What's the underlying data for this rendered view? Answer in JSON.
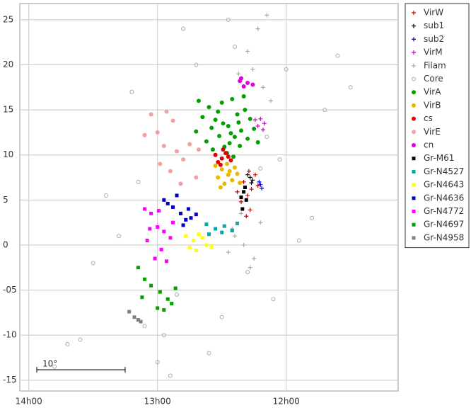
{
  "chart_data": {
    "type": "scatter",
    "annotation": "10°",
    "xlim": [
      14.07,
      11.13
    ],
    "ylim": [
      -16.2,
      26.8
    ],
    "xticks": [
      {
        "value": 14,
        "label": "14h00"
      },
      {
        "value": 13,
        "label": "13h00"
      },
      {
        "value": 12,
        "label": "12h00"
      }
    ],
    "yticks": [
      {
        "value": -15,
        "label": "-15"
      },
      {
        "value": -10,
        "label": "-10"
      },
      {
        "value": -5,
        "label": "-05"
      },
      0,
      5,
      10,
      15,
      20,
      25
    ],
    "grid": true,
    "legend": "outside-right",
    "series": [
      {
        "name": "VirW",
        "color": "#cc0000",
        "marker": "plus",
        "x": [
          12.33,
          12.3,
          12.27,
          12.35,
          12.24,
          12.28,
          12.31,
          12.38,
          12.22,
          12.29
        ],
        "y": [
          7.0,
          5.5,
          6.2,
          4.8,
          7.8,
          3.9,
          3.2,
          5.9,
          6.6,
          8.2
        ]
      },
      {
        "name": "sub1",
        "color": "#000000",
        "marker": "plus",
        "x": [
          12.28,
          12.26,
          12.3,
          12.27
        ],
        "y": [
          7.5,
          7.2,
          7.8,
          6.9
        ]
      },
      {
        "name": "sub2",
        "color": "#0000cc",
        "marker": "plus",
        "x": [
          12.2,
          12.19,
          12.21
        ],
        "y": [
          6.7,
          6.3,
          7.0
        ]
      },
      {
        "name": "VirM",
        "color": "#cc00cc",
        "marker": "plus",
        "x": [
          12.2,
          12.17,
          12.22,
          12.18,
          12.24
        ],
        "y": [
          14.0,
          13.5,
          13.2,
          12.8,
          13.9
        ]
      },
      {
        "name": "Filam",
        "color": "#aaaaaa",
        "marker": "plus",
        "x": [
          12.15,
          12.22,
          12.3,
          12.37,
          12.18,
          12.4,
          12.33,
          12.25,
          12.45,
          12.2,
          12.28,
          12.35,
          12.12,
          12.42,
          12.26
        ],
        "y": [
          25.5,
          24.0,
          21.5,
          19.0,
          17.5,
          1.0,
          0.0,
          -1.5,
          -0.8,
          2.5,
          -2.5,
          3.5,
          16.0,
          1.8,
          19.5
        ]
      },
      {
        "name": "Core",
        "color": "#aaaaaa",
        "marker": "circle-open",
        "x": [
          12.8,
          12.4,
          12.0,
          11.6,
          13.2,
          13.6,
          12.6,
          12.1,
          11.8,
          13.4,
          12.9,
          12.3,
          11.5,
          13.7,
          12.7,
          12.2,
          13.1,
          11.9,
          13.0,
          12.5,
          13.5,
          12.85,
          12.15,
          11.7,
          13.3,
          12.95,
          12.45,
          13.8,
          12.05,
          13.15
        ],
        "y": [
          24.0,
          22.0,
          19.5,
          21.0,
          17.0,
          -10.5,
          -12.0,
          -6.0,
          3.0,
          5.5,
          -14.5,
          -3.0,
          17.5,
          -11.0,
          20.0,
          8.5,
          -9.0,
          0.5,
          -13.0,
          -8.0,
          -2.0,
          -5.5,
          12.0,
          15.0,
          1.0,
          -10.0,
          25.0,
          -13.5,
          9.5,
          7.0
        ]
      },
      {
        "name": "VirA",
        "color": "#00a000",
        "marker": "circle",
        "x": [
          12.45,
          12.38,
          12.52,
          12.6,
          12.3,
          12.42,
          12.55,
          12.35,
          12.48,
          12.62,
          12.28,
          12.4,
          12.5,
          12.58,
          12.33,
          12.44,
          12.7,
          12.25,
          12.37,
          12.53,
          12.46,
          12.65,
          12.32,
          12.41,
          12.57,
          12.49,
          12.36,
          12.68,
          12.43,
          12.22
        ],
        "y": [
          13.2,
          14.5,
          12.1,
          15.3,
          11.8,
          16.2,
          13.9,
          12.7,
          10.9,
          11.5,
          14.0,
          12.0,
          15.8,
          13.0,
          16.5,
          11.3,
          12.6,
          12.9,
          13.6,
          14.8,
          10.2,
          14.2,
          15.0,
          9.8,
          10.6,
          13.5,
          11.0,
          16.0,
          12.4,
          11.4
        ]
      },
      {
        "name": "VirB",
        "color": "#e8b800",
        "marker": "circle",
        "x": [
          12.45,
          12.5,
          12.42,
          12.48,
          12.4,
          12.53,
          12.46,
          12.38,
          12.51,
          12.44,
          12.55,
          12.36
        ],
        "y": [
          7.8,
          8.4,
          7.2,
          6.8,
          8.6,
          7.5,
          9.0,
          7.9,
          6.4,
          8.2,
          8.8,
          6.9
        ]
      },
      {
        "name": "cs",
        "color": "#e00000",
        "marker": "circle",
        "x": [
          12.5,
          12.47,
          12.53,
          12.45,
          12.49,
          12.55,
          12.43,
          12.51
        ],
        "y": [
          9.6,
          10.2,
          9.2,
          9.8,
          10.6,
          10.0,
          9.4,
          8.9
        ]
      },
      {
        "name": "VirE",
        "color": "#f4a0a0",
        "marker": "circle",
        "x": [
          13.05,
          12.95,
          12.85,
          13.0,
          12.8,
          12.9,
          12.75,
          12.7,
          12.88,
          12.98,
          13.1,
          12.82,
          12.68,
          12.93
        ],
        "y": [
          14.5,
          11.0,
          10.4,
          12.5,
          9.5,
          8.2,
          11.2,
          7.5,
          13.8,
          9.0,
          12.2,
          6.8,
          10.6,
          14.8
        ]
      },
      {
        "name": "cn",
        "color": "#e000e0",
        "marker": "circle",
        "x": [
          12.36,
          12.33,
          12.3,
          12.26,
          12.35
        ],
        "y": [
          18.2,
          17.6,
          18.0,
          17.8,
          18.5
        ]
      },
      {
        "name": "Gr-M61",
        "color": "#000000",
        "marker": "square",
        "x": [
          12.33,
          12.35,
          12.32,
          12.34,
          12.31
        ],
        "y": [
          5.9,
          5.3,
          6.4,
          4.0,
          5.0
        ]
      },
      {
        "name": "Gr-N4527",
        "color": "#00aaaa",
        "marker": "square",
        "x": [
          12.62,
          12.55,
          12.48,
          12.42,
          12.38,
          12.6,
          12.5
        ],
        "y": [
          2.3,
          1.8,
          2.1,
          1.6,
          2.4,
          1.2,
          1.4
        ]
      },
      {
        "name": "Gr-N4643",
        "color": "#ffff00",
        "marker": "square",
        "x": [
          12.78,
          12.72,
          12.68,
          12.62,
          12.75,
          12.7,
          12.65,
          12.58
        ],
        "y": [
          1.0,
          0.5,
          1.2,
          0.0,
          -0.3,
          -0.6,
          0.8,
          -0.2
        ]
      },
      {
        "name": "Gr-N4636",
        "color": "#0000cc",
        "marker": "square",
        "x": [
          12.95,
          12.88,
          12.82,
          12.78,
          12.74,
          12.7,
          12.85,
          12.92,
          12.8,
          12.76
        ],
        "y": [
          5.0,
          4.2,
          3.5,
          2.8,
          3.0,
          3.4,
          5.5,
          4.6,
          2.2,
          4.0
        ]
      },
      {
        "name": "Gr-N4772",
        "color": "#ff00ff",
        "marker": "square",
        "x": [
          13.1,
          13.05,
          13.0,
          12.95,
          12.9,
          13.08,
          12.97,
          13.02,
          12.93,
          12.88,
          13.06,
          12.99
        ],
        "y": [
          4.0,
          3.5,
          2.0,
          1.5,
          0.8,
          0.5,
          -0.5,
          -1.5,
          -1.8,
          2.5,
          1.8,
          3.8
        ]
      },
      {
        "name": "Gr-N4697",
        "color": "#00a000",
        "marker": "square",
        "x": [
          13.15,
          13.1,
          13.05,
          12.98,
          12.92,
          12.86,
          13.12,
          13.0,
          12.95,
          12.89
        ],
        "y": [
          -2.5,
          -3.8,
          -4.5,
          -5.2,
          -6.0,
          -4.8,
          -5.8,
          -7.0,
          -7.2,
          -6.5
        ]
      },
      {
        "name": "Gr-N4958",
        "color": "#808080",
        "marker": "square",
        "x": [
          13.22,
          13.18,
          13.15,
          13.13
        ],
        "y": [
          -7.4,
          -8.0,
          -8.3,
          -8.5
        ]
      }
    ]
  }
}
